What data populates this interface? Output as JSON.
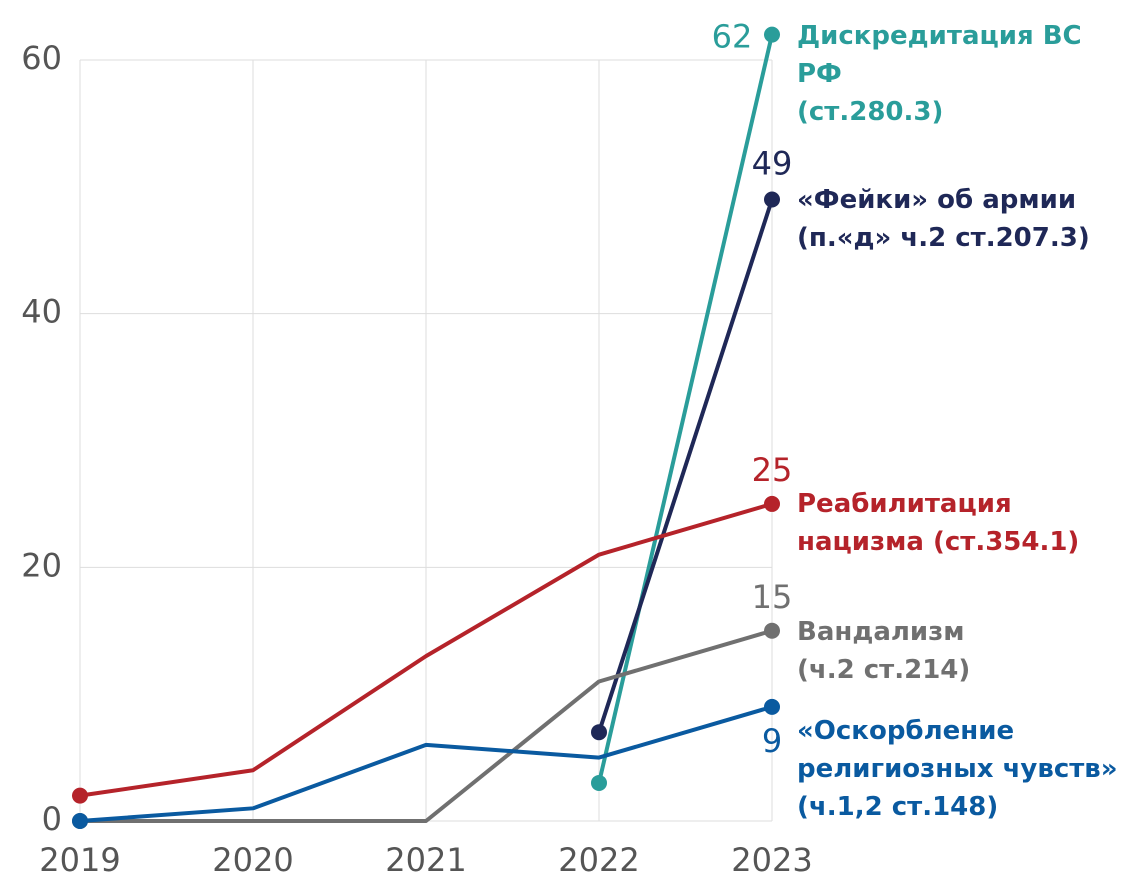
{
  "chart_data": {
    "type": "line",
    "x": [
      "2019",
      "2020",
      "2021",
      "2022",
      "2023"
    ],
    "ylim": [
      0,
      60
    ],
    "yticks": [
      0,
      20,
      40,
      60
    ],
    "grid": true,
    "series": [
      {
        "name": "Дискредитация ВС РФ\n(ст.280.3)",
        "color": "#2a9d9a",
        "values": [
          null,
          null,
          null,
          3,
          62
        ]
      },
      {
        "name": "«Фейки» об армии\n(п.«д» ч.2 ст.207.3)",
        "color": "#1f2857",
        "values": [
          null,
          null,
          null,
          7,
          49
        ]
      },
      {
        "name": "Реабилитация\nнацизма (ст.354.1)",
        "color": "#b5232a",
        "values": [
          2,
          4,
          13,
          21,
          25
        ]
      },
      {
        "name": "Вандализм\n(ч.2 ст.214)",
        "color": "#707070",
        "values": [
          0,
          0,
          0,
          11,
          15
        ]
      },
      {
        "name": "«Оскорбление\nрелигиозных чувств»\n(ч.1,2 ст.148)",
        "color": "#0a5aa0",
        "values": [
          0,
          1,
          6,
          5,
          9
        ]
      }
    ]
  }
}
